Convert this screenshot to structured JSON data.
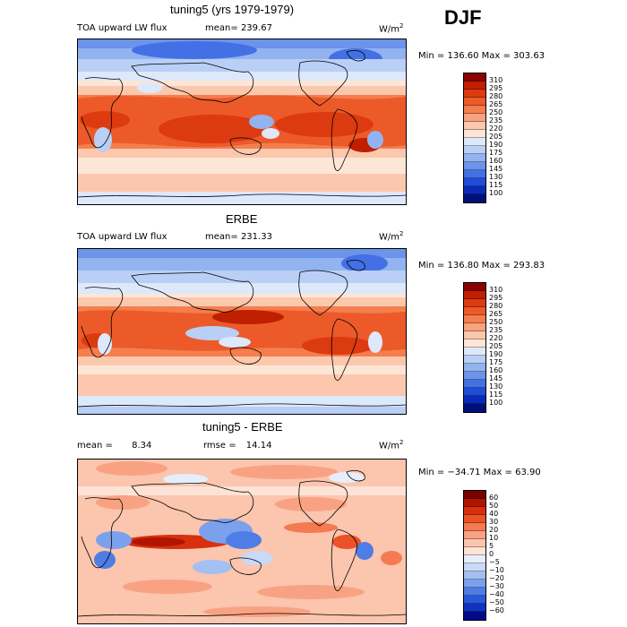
{
  "season": "DJF",
  "panels": [
    {
      "title": "tuning5 (yrs 1979-1979)",
      "field": "TOA upward LW flux",
      "mean_label": "mean=",
      "mean_value": "239.67",
      "units_base": "W/m",
      "units_exp": "2",
      "min_max": "Min = 136.60 Max = 303.63",
      "ticks": [
        "310",
        "295",
        "280",
        "265",
        "250",
        "235",
        "220",
        "205",
        "190",
        "175",
        "160",
        "145",
        "130",
        "115",
        "100"
      ]
    },
    {
      "title": "ERBE",
      "field": "TOA upward LW flux",
      "mean_label": "mean=",
      "mean_value": "231.33",
      "units_base": "W/m",
      "units_exp": "2",
      "min_max": "Min = 136.80 Max = 293.83",
      "ticks": [
        "310",
        "295",
        "280",
        "265",
        "250",
        "235",
        "220",
        "205",
        "190",
        "175",
        "160",
        "145",
        "130",
        "115",
        "100"
      ]
    },
    {
      "title": "tuning5 - ERBE",
      "mean_label": "mean =",
      "mean_value": "8.34",
      "rmse_label": "rmse =",
      "rmse_value": "14.14",
      "units_base": "W/m",
      "units_exp": "2",
      "min_max": "Min = −34.71 Max =   63.90",
      "ticks": [
        "60",
        "50",
        "40",
        "30",
        "20",
        "10",
        "5",
        "0",
        "−5",
        "−10",
        "−20",
        "−30",
        "−40",
        "−50",
        "−60"
      ]
    }
  ],
  "colors": {
    "abs_scale": [
      "#8b0000",
      "#c01f00",
      "#dc3a10",
      "#ec5a2a",
      "#f47e4e",
      "#f8a280",
      "#fbc8ad",
      "#fde6d6",
      "#dde9fb",
      "#b9cff6",
      "#92b3f0",
      "#6b94ea",
      "#4370e4",
      "#1f4cd8",
      "#0b2ab8",
      "#00107a"
    ],
    "diff_scale": [
      "#7a0000",
      "#b01500",
      "#d8300e",
      "#ec5228",
      "#f57a52",
      "#f9a283",
      "#fbc5ae",
      "#fde3d6",
      "#e6eefb",
      "#c9d9f7",
      "#a4bff2",
      "#7ba1ec",
      "#4f7de6",
      "#2a58dc",
      "#1232c0",
      "#030a8a"
    ]
  }
}
